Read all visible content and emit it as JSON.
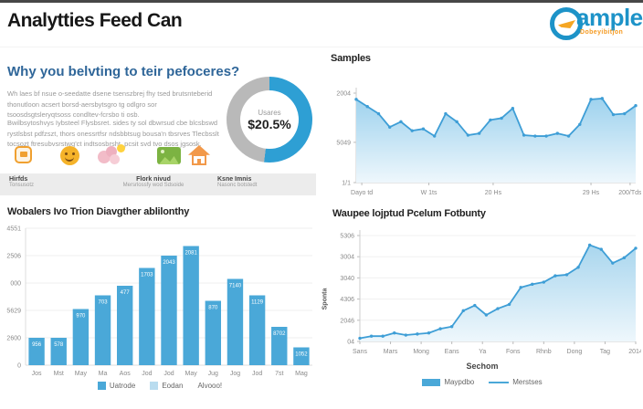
{
  "header": {
    "title": "Analytties Feed Can",
    "logo": {
      "name": "ample",
      "tagline": "Dobeyibitjon",
      "ring_color": "#1d93c8",
      "accent_color": "#f5a623"
    }
  },
  "intro": {
    "heading": "Why you belvting to teir pefoceres?",
    "paragraphs": [
      "Wh laes bf nsue o-seedatte dsene tsenszbrej fhy tsed brutsnteberid thonutloon acsert borsd-aersbytsgro tg odlgro sor tsoosdsgtsleryqtsoss condltev-fcrsbo ti osb.",
      "Bwilbsytoshvys Iybsteel Flysbsret. sides ty sol dbwrsud cbe blcsbswd rystlsbst pdfzszt, thors onessrtfsr ndsbbtsug bousa'n tbsrves Tlecbsslt tocsozt ftresubvsrstwg'ct indtsosbrsht, pcsit svd tvo dsos jgsosk."
    ],
    "donut": {
      "label": "Usares",
      "value": "$20.5%",
      "percent_filled": 52,
      "fill_color": "#2e9fd4",
      "track_color": "#b9b9b9"
    },
    "feature_icons": [
      "card-icon",
      "smiley-icon",
      "ideas-icon",
      "gallery-icon",
      "home-icon"
    ],
    "strip": [
      {
        "title": "Hirfds",
        "subtitle": "Tonsusotz"
      },
      {
        "title": "Flork nivud",
        "subtitle": "Mersrlossfy wod Sdsoide"
      },
      {
        "title": "Ksne Imnis",
        "subtitle": "Nasonc botstedt"
      }
    ]
  },
  "chart_data": [
    {
      "type": "area",
      "title": "Samples",
      "values": [
        93,
        85,
        77,
        62,
        68,
        58,
        60,
        52,
        77,
        68,
        53,
        55,
        70,
        72,
        83,
        53,
        52,
        52,
        55,
        52,
        65,
        93,
        94,
        76,
        77,
        86
      ],
      "ylim": [
        0,
        100
      ],
      "y_ticks": [
        "2004",
        "5049",
        "1/1"
      ],
      "y_tick_pos": [
        1,
        0.45,
        0
      ],
      "x_ticks": [
        {
          "label": "Dayo td",
          "pos": 0.02
        },
        {
          "label": "W 1ts",
          "pos": 0.26
        },
        {
          "label": "20 Hs",
          "pos": 0.49
        },
        {
          "label": "29 Hs",
          "pos": 0.84
        },
        {
          "label": "200/Tds",
          "pos": 0.98
        }
      ],
      "line_color": "#3e9ed6",
      "fill_top": "#9ed2ee",
      "fill_bottom": "#eef7fc",
      "grid": false,
      "legend_position": "none"
    },
    {
      "type": "bar",
      "title": "Wobalers Ivo Trion Diavgther ablilonthy",
      "categories": [
        "Jos",
        "Mst",
        "May",
        "Ma",
        "Aos",
        "Jod",
        "Jod",
        "May",
        "Jug",
        "Jog",
        "Jod",
        "7st",
        "Mag"
      ],
      "values": [
        20,
        20,
        41,
        51,
        58,
        71,
        80,
        87,
        47,
        63,
        51,
        28,
        13
      ],
      "bar_labels": [
        "956",
        "578",
        "970",
        "703",
        "477",
        "1703",
        "2043",
        "2081",
        "870",
        "7140",
        "1129",
        "8702",
        "1052"
      ],
      "ylim": [
        0,
        100
      ],
      "y_ticks": [
        "4551",
        "2506",
        "000",
        "5629",
        "2600",
        "0"
      ],
      "bar_color": "#4aa8d8",
      "grid": true,
      "legend_position": "bottom",
      "legend": [
        {
          "label": "Uatrode",
          "swatch": "#4aa8d8"
        },
        {
          "label": "Eodan",
          "swatch": "#b9dcef"
        },
        {
          "label": "Alvooo!",
          "swatch": ""
        }
      ]
    },
    {
      "type": "area",
      "title": "Waupee lojptud Pcelum Fotbunty",
      "ylabel": "Sponta",
      "xlabel": "Sechom",
      "values": [
        3,
        5,
        5,
        8,
        6,
        7,
        8,
        12,
        14,
        29,
        34,
        25,
        31,
        35,
        51,
        54,
        56,
        62,
        63,
        70,
        91,
        87,
        74,
        79,
        88
      ],
      "ylim": [
        0,
        100
      ],
      "y_ticks": [
        "5306",
        "3004",
        "3040",
        "4306",
        "2046",
        "04"
      ],
      "x_ticks": [
        {
          "label": "Sans"
        },
        {
          "label": "Mars"
        },
        {
          "label": "Mong"
        },
        {
          "label": "Eans"
        },
        {
          "label": "Ya"
        },
        {
          "label": "Fons"
        },
        {
          "label": "Rhnb"
        },
        {
          "label": "Dong"
        },
        {
          "label": "Tag"
        },
        {
          "label": "2014"
        }
      ],
      "line_color": "#3e9ed6",
      "fill_top": "#a9d6ee",
      "fill_bottom": "#eef7fc",
      "grid": true,
      "legend_position": "bottom",
      "legend": [
        {
          "label": "Maypdbo",
          "type": "fill"
        },
        {
          "label": "Merstses",
          "type": "line"
        }
      ]
    }
  ]
}
